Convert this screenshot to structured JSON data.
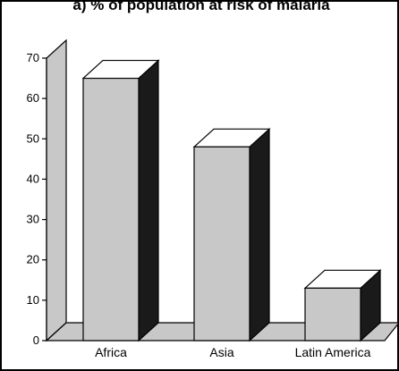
{
  "chart_data": {
    "type": "bar",
    "title": "a) % of population at risk of malaria",
    "categories": [
      "Africa",
      "Asia",
      "Latin America"
    ],
    "values": [
      65,
      48,
      13
    ],
    "ylim": [
      0,
      70
    ],
    "yticks": [
      0,
      10,
      20,
      30,
      40,
      50,
      60,
      70
    ],
    "xlabel": "",
    "ylabel": "",
    "grid": false,
    "style": "3d",
    "colors": {
      "bar_front": "#c8c8c8",
      "bar_top": "#ffffff",
      "bar_side": "#1a1a1a",
      "wall": "#c8c8c8",
      "floor": "#c8c8c8"
    }
  }
}
